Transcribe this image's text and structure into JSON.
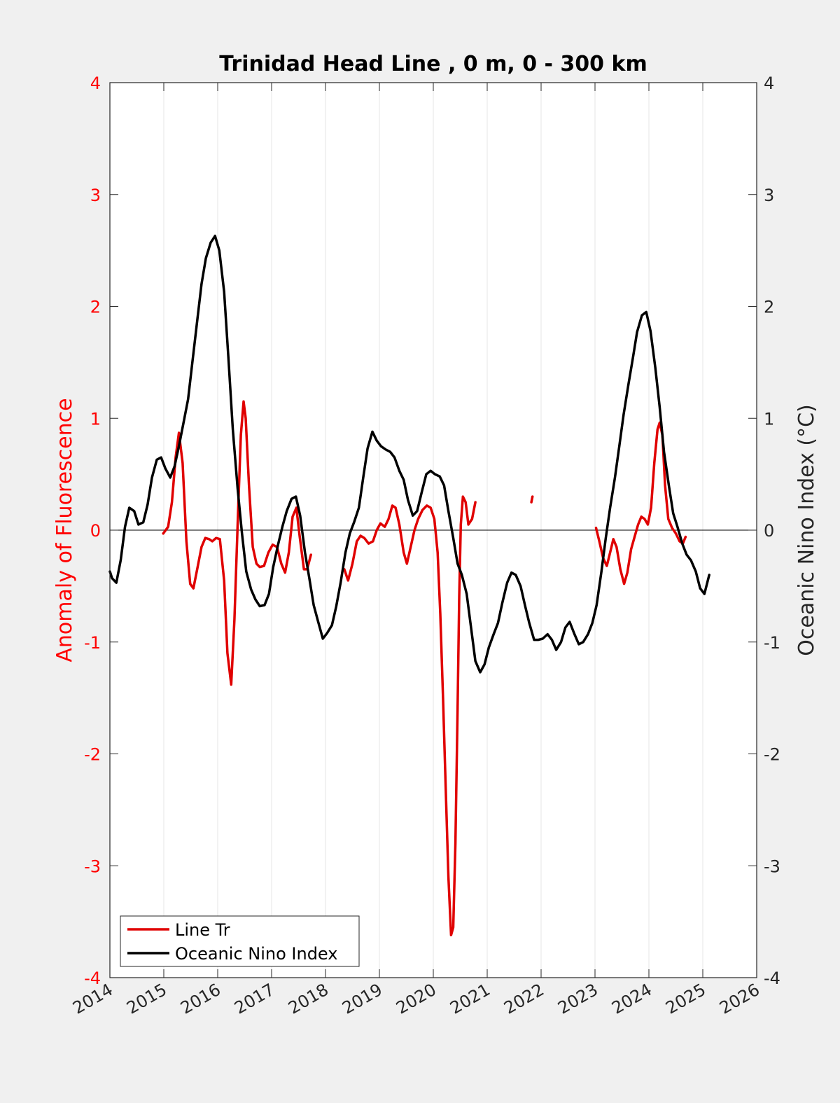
{
  "chart_data": {
    "type": "line",
    "title": "Trinidad Head Line , 0 m, 0 - 300 km",
    "ylabel_left": "Anomaly of Fluorescence",
    "ylabel_right": "Oceanic Nino Index (°C)",
    "xlabel": "",
    "xlim": [
      2014,
      2026
    ],
    "ylim_left": [
      -4,
      4
    ],
    "ylim_right": [
      -4,
      4
    ],
    "x_ticks": [
      "2014",
      "2015",
      "2016",
      "2017",
      "2018",
      "2019",
      "2020",
      "2021",
      "2022",
      "2023",
      "2024",
      "2025",
      "2026"
    ],
    "y_ticks_left": [
      "4",
      "3",
      "2",
      "1",
      "0",
      "-1",
      "-2",
      "-3",
      "-4"
    ],
    "y_ticks_right": [
      "4",
      "3",
      "2",
      "1",
      "0",
      "-1",
      "-2",
      "-3",
      "-4"
    ],
    "grid": "vertical",
    "legend": "bottom-left",
    "colors": {
      "left_axis": "#ff0000",
      "series_fluor": "#e00000",
      "series_oni": "#000000",
      "background": "#f0f0f0",
      "plot_bg": "#ffffff",
      "grid": "#e6e6e6"
    },
    "series": [
      {
        "name": "Line Tr",
        "axis": "left",
        "color": "#e00000",
        "segments": [
          [
            [
              2014.99,
              -0.03
            ],
            [
              2015.08,
              0.03
            ],
            [
              2015.15,
              0.25
            ],
            [
              2015.22,
              0.65
            ],
            [
              2015.28,
              0.87
            ],
            [
              2015.35,
              0.6
            ],
            [
              2015.42,
              -0.1
            ],
            [
              2015.49,
              -0.48
            ],
            [
              2015.55,
              -0.52
            ],
            [
              2015.62,
              -0.35
            ],
            [
              2015.7,
              -0.15
            ],
            [
              2015.77,
              -0.07
            ],
            [
              2015.84,
              -0.08
            ],
            [
              2015.9,
              -0.1
            ],
            [
              2015.97,
              -0.07
            ],
            [
              2016.04,
              -0.08
            ],
            [
              2016.12,
              -0.45
            ],
            [
              2016.18,
              -1.1
            ],
            [
              2016.25,
              -1.38
            ],
            [
              2016.31,
              -0.8
            ],
            [
              2016.38,
              0.2
            ],
            [
              2016.43,
              0.85
            ],
            [
              2016.48,
              1.15
            ],
            [
              2016.52,
              1.0
            ],
            [
              2016.58,
              0.4
            ],
            [
              2016.65,
              -0.15
            ],
            [
              2016.72,
              -0.3
            ],
            [
              2016.78,
              -0.33
            ],
            [
              2016.86,
              -0.32
            ],
            [
              2016.94,
              -0.2
            ],
            [
              2017.02,
              -0.13
            ],
            [
              2017.1,
              -0.15
            ],
            [
              2017.18,
              -0.3
            ],
            [
              2017.25,
              -0.38
            ],
            [
              2017.32,
              -0.2
            ],
            [
              2017.39,
              0.12
            ],
            [
              2017.46,
              0.2
            ],
            [
              2017.52,
              -0.05
            ],
            [
              2017.6,
              -0.35
            ],
            [
              2017.66,
              -0.35
            ],
            [
              2017.73,
              -0.22
            ]
          ],
          [
            [
              2018.35,
              -0.35
            ],
            [
              2018.42,
              -0.45
            ],
            [
              2018.5,
              -0.3
            ],
            [
              2018.58,
              -0.1
            ],
            [
              2018.65,
              -0.05
            ],
            [
              2018.72,
              -0.07
            ],
            [
              2018.8,
              -0.12
            ],
            [
              2018.88,
              -0.1
            ],
            [
              2018.95,
              0.0
            ],
            [
              2019.02,
              0.06
            ],
            [
              2019.1,
              0.03
            ],
            [
              2019.17,
              0.1
            ],
            [
              2019.24,
              0.22
            ],
            [
              2019.3,
              0.2
            ],
            [
              2019.37,
              0.05
            ],
            [
              2019.45,
              -0.2
            ],
            [
              2019.51,
              -0.3
            ],
            [
              2019.58,
              -0.15
            ],
            [
              2019.65,
              0.0
            ],
            [
              2019.72,
              0.1
            ],
            [
              2019.8,
              0.18
            ],
            [
              2019.88,
              0.22
            ],
            [
              2019.95,
              0.2
            ],
            [
              2020.02,
              0.1
            ],
            [
              2020.08,
              -0.2
            ],
            [
              2020.13,
              -0.75
            ],
            [
              2020.18,
              -1.5
            ],
            [
              2020.23,
              -2.3
            ],
            [
              2020.28,
              -3.1
            ],
            [
              2020.33,
              -3.62
            ],
            [
              2020.37,
              -3.55
            ],
            [
              2020.41,
              -2.8
            ],
            [
              2020.45,
              -1.6
            ],
            [
              2020.48,
              -0.6
            ],
            [
              2020.51,
              0.05
            ],
            [
              2020.55,
              0.3
            ],
            [
              2020.6,
              0.25
            ],
            [
              2020.65,
              0.05
            ],
            [
              2020.72,
              0.1
            ],
            [
              2020.78,
              0.25
            ]
          ],
          [
            [
              2021.82,
              0.25
            ],
            [
              2021.84,
              0.3
            ]
          ],
          [
            [
              2023.02,
              0.02
            ],
            [
              2023.08,
              -0.1
            ],
            [
              2023.15,
              -0.25
            ],
            [
              2023.22,
              -0.32
            ],
            [
              2023.28,
              -0.2
            ],
            [
              2023.34,
              -0.08
            ],
            [
              2023.4,
              -0.15
            ],
            [
              2023.47,
              -0.35
            ],
            [
              2023.54,
              -0.48
            ],
            [
              2023.6,
              -0.38
            ],
            [
              2023.67,
              -0.17
            ],
            [
              2023.74,
              -0.05
            ],
            [
              2023.8,
              0.05
            ],
            [
              2023.86,
              0.12
            ],
            [
              2023.92,
              0.1
            ],
            [
              2023.98,
              0.05
            ],
            [
              2024.04,
              0.2
            ],
            [
              2024.1,
              0.6
            ],
            [
              2024.16,
              0.9
            ],
            [
              2024.2,
              0.96
            ],
            [
              2024.25,
              0.85
            ],
            [
              2024.3,
              0.4
            ],
            [
              2024.36,
              0.1
            ],
            [
              2024.43,
              0.02
            ],
            [
              2024.5,
              -0.03
            ],
            [
              2024.57,
              -0.1
            ],
            [
              2024.63,
              -0.12
            ],
            [
              2024.68,
              -0.06
            ]
          ]
        ]
      },
      {
        "name": "Oceanic Nino Index",
        "axis": "right",
        "color": "#000000",
        "segments": [
          [
            [
              2014.0,
              -0.37
            ],
            [
              2014.04,
              -0.43
            ],
            [
              2014.12,
              -0.47
            ],
            [
              2014.2,
              -0.27
            ],
            [
              2014.28,
              0.03
            ],
            [
              2014.36,
              0.2
            ],
            [
              2014.45,
              0.17
            ],
            [
              2014.53,
              0.05
            ],
            [
              2014.62,
              0.07
            ],
            [
              2014.7,
              0.23
            ],
            [
              2014.78,
              0.47
            ],
            [
              2014.87,
              0.63
            ],
            [
              2014.95,
              0.65
            ],
            [
              2015.03,
              0.55
            ],
            [
              2015.12,
              0.47
            ],
            [
              2015.2,
              0.57
            ],
            [
              2015.28,
              0.75
            ],
            [
              2015.37,
              0.97
            ],
            [
              2015.45,
              1.17
            ],
            [
              2015.53,
              1.5
            ],
            [
              2015.62,
              1.87
            ],
            [
              2015.7,
              2.2
            ],
            [
              2015.78,
              2.43
            ],
            [
              2015.87,
              2.57
            ],
            [
              2015.95,
              2.63
            ],
            [
              2016.03,
              2.5
            ],
            [
              2016.12,
              2.13
            ],
            [
              2016.2,
              1.53
            ],
            [
              2016.28,
              0.9
            ],
            [
              2016.37,
              0.37
            ],
            [
              2016.45,
              -0.03
            ],
            [
              2016.53,
              -0.37
            ],
            [
              2016.62,
              -0.53
            ],
            [
              2016.7,
              -0.62
            ],
            [
              2016.78,
              -0.68
            ],
            [
              2016.87,
              -0.67
            ],
            [
              2016.95,
              -0.57
            ],
            [
              2017.03,
              -0.33
            ],
            [
              2017.12,
              -0.13
            ],
            [
              2017.2,
              0.03
            ],
            [
              2017.28,
              0.17
            ],
            [
              2017.37,
              0.28
            ],
            [
              2017.45,
              0.3
            ],
            [
              2017.53,
              0.13
            ],
            [
              2017.62,
              -0.2
            ],
            [
              2017.7,
              -0.43
            ],
            [
              2017.78,
              -0.67
            ],
            [
              2017.87,
              -0.83
            ],
            [
              2017.95,
              -0.97
            ],
            [
              2018.03,
              -0.92
            ],
            [
              2018.12,
              -0.85
            ],
            [
              2018.2,
              -0.68
            ],
            [
              2018.28,
              -0.47
            ],
            [
              2018.37,
              -0.2
            ],
            [
              2018.45,
              -0.03
            ],
            [
              2018.53,
              0.07
            ],
            [
              2018.62,
              0.2
            ],
            [
              2018.7,
              0.47
            ],
            [
              2018.78,
              0.73
            ],
            [
              2018.87,
              0.88
            ],
            [
              2018.95,
              0.8
            ],
            [
              2019.03,
              0.75
            ],
            [
              2019.12,
              0.72
            ],
            [
              2019.2,
              0.7
            ],
            [
              2019.28,
              0.65
            ],
            [
              2019.37,
              0.53
            ],
            [
              2019.45,
              0.45
            ],
            [
              2019.53,
              0.27
            ],
            [
              2019.62,
              0.13
            ],
            [
              2019.7,
              0.17
            ],
            [
              2019.78,
              0.33
            ],
            [
              2019.87,
              0.5
            ],
            [
              2019.95,
              0.53
            ],
            [
              2020.03,
              0.5
            ],
            [
              2020.12,
              0.48
            ],
            [
              2020.2,
              0.4
            ],
            [
              2020.28,
              0.17
            ],
            [
              2020.37,
              -0.07
            ],
            [
              2020.45,
              -0.3
            ],
            [
              2020.53,
              -0.4
            ],
            [
              2020.62,
              -0.57
            ],
            [
              2020.7,
              -0.87
            ],
            [
              2020.78,
              -1.17
            ],
            [
              2020.87,
              -1.27
            ],
            [
              2020.95,
              -1.2
            ],
            [
              2021.03,
              -1.05
            ],
            [
              2021.12,
              -0.93
            ],
            [
              2021.2,
              -0.83
            ],
            [
              2021.28,
              -0.65
            ],
            [
              2021.37,
              -0.47
            ],
            [
              2021.45,
              -0.38
            ],
            [
              2021.53,
              -0.4
            ],
            [
              2021.62,
              -0.5
            ],
            [
              2021.7,
              -0.67
            ],
            [
              2021.78,
              -0.83
            ],
            [
              2021.87,
              -0.98
            ],
            [
              2021.95,
              -0.98
            ],
            [
              2022.03,
              -0.97
            ],
            [
              2022.12,
              -0.93
            ],
            [
              2022.2,
              -0.98
            ],
            [
              2022.28,
              -1.07
            ],
            [
              2022.37,
              -1.0
            ],
            [
              2022.45,
              -0.87
            ],
            [
              2022.53,
              -0.82
            ],
            [
              2022.62,
              -0.93
            ],
            [
              2022.7,
              -1.02
            ],
            [
              2022.78,
              -1.0
            ],
            [
              2022.87,
              -0.93
            ],
            [
              2022.95,
              -0.83
            ],
            [
              2023.03,
              -0.67
            ],
            [
              2023.12,
              -0.37
            ],
            [
              2023.2,
              -0.07
            ],
            [
              2023.28,
              0.2
            ],
            [
              2023.37,
              0.47
            ],
            [
              2023.45,
              0.75
            ],
            [
              2023.53,
              1.03
            ],
            [
              2023.62,
              1.3
            ],
            [
              2023.7,
              1.53
            ],
            [
              2023.78,
              1.77
            ],
            [
              2023.87,
              1.92
            ],
            [
              2023.95,
              1.95
            ],
            [
              2024.03,
              1.78
            ],
            [
              2024.12,
              1.45
            ],
            [
              2024.2,
              1.1
            ],
            [
              2024.28,
              0.7
            ],
            [
              2024.37,
              0.4
            ],
            [
              2024.45,
              0.15
            ],
            [
              2024.53,
              0.03
            ],
            [
              2024.62,
              -0.12
            ],
            [
              2024.7,
              -0.22
            ],
            [
              2024.78,
              -0.27
            ],
            [
              2024.87,
              -0.37
            ],
            [
              2024.95,
              -0.52
            ],
            [
              2025.03,
              -0.57
            ],
            [
              2025.12,
              -0.4
            ]
          ]
        ]
      }
    ]
  }
}
